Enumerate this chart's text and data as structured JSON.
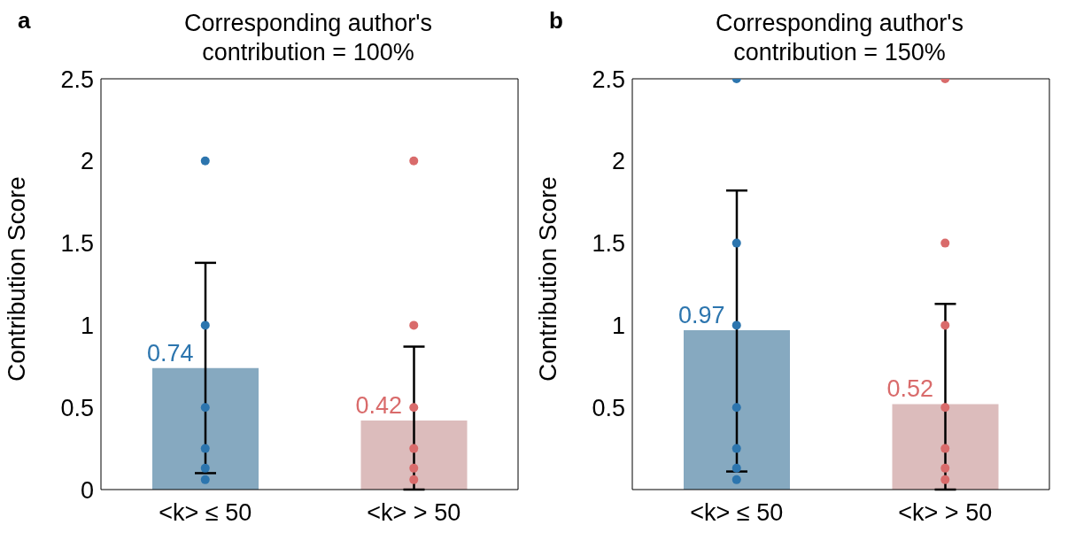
{
  "chart_data": [
    {
      "type": "bar",
      "title": "Corresponding author's contribution = 100%",
      "annotations": [
        "a"
      ],
      "categories": [
        "<k> ≤ 50",
        "<k> > 50"
      ],
      "ylabel": "Contribution Score",
      "ylim": [
        0,
        2.5
      ],
      "yticks": [
        0,
        0.5,
        1,
        1.5,
        2,
        2.5
      ],
      "series": [
        {
          "type": "bar",
          "colors": [
            "#86a9c0",
            "#dcbcbc"
          ],
          "values": [
            0.74,
            0.42
          ],
          "value_labels": [
            "0.74",
            "0.42"
          ],
          "errors": [
            [
              0.1,
              1.38
            ],
            [
              0,
              0.87
            ]
          ]
        },
        {
          "type": "scatter",
          "x": [
            "<k> ≤ 50",
            "<k> ≤ 50",
            "<k> ≤ 50",
            "<k> ≤ 50",
            "<k> ≤ 50",
            "<k> ≤ 50",
            "<k> > 50",
            "<k> > 50",
            "<k> > 50",
            "<k> > 50",
            "<k> > 50",
            "<k> > 50"
          ],
          "values": [
            2,
            1,
            0.5,
            0.25,
            0.13,
            0.06,
            2,
            1,
            0.5,
            0.25,
            0.13,
            0.06
          ],
          "colors": [
            "#2c75ae",
            "#2c75ae",
            "#2c75ae",
            "#2c75ae",
            "#2c75ae",
            "#2c75ae",
            "#d96b6b",
            "#d96b6b",
            "#d96b6b",
            "#d96b6b",
            "#d96b6b",
            "#d96b6b"
          ]
        }
      ]
    },
    {
      "type": "bar",
      "title": "Corresponding author's contribution = 150%",
      "annotations": [
        "b"
      ],
      "categories": [
        "<k> ≤ 50",
        "<k> > 50"
      ],
      "ylabel": "Contribution Score",
      "ylim": [
        0,
        2.5
      ],
      "yticks": [
        0.5,
        1,
        1.5,
        2,
        2.5
      ],
      "series": [
        {
          "type": "bar",
          "colors": [
            "#86a9c0",
            "#dcbcbc"
          ],
          "values": [
            0.97,
            0.52
          ],
          "value_labels": [
            "0.97",
            "0.52"
          ],
          "errors": [
            [
              0.11,
              1.82
            ],
            [
              0,
              1.13
            ]
          ]
        },
        {
          "type": "scatter",
          "x": [
            "<k> ≤ 50",
            "<k> ≤ 50",
            "<k> ≤ 50",
            "<k> ≤ 50",
            "<k> ≤ 50",
            "<k> ≤ 50",
            "<k> ≤ 50",
            "<k> > 50",
            "<k> > 50",
            "<k> > 50",
            "<k> > 50",
            "<k> > 50",
            "<k> > 50",
            "<k> > 50"
          ],
          "values": [
            2.5,
            1.5,
            1,
            0.5,
            0.25,
            0.13,
            0.06,
            2.5,
            1.5,
            1,
            0.5,
            0.25,
            0.13,
            0.06
          ],
          "colors": [
            "#2c75ae",
            "#2c75ae",
            "#2c75ae",
            "#2c75ae",
            "#2c75ae",
            "#2c75ae",
            "#2c75ae",
            "#d96b6b",
            "#d96b6b",
            "#d96b6b",
            "#d96b6b",
            "#d96b6b",
            "#d96b6b",
            "#d96b6b"
          ]
        }
      ]
    }
  ]
}
